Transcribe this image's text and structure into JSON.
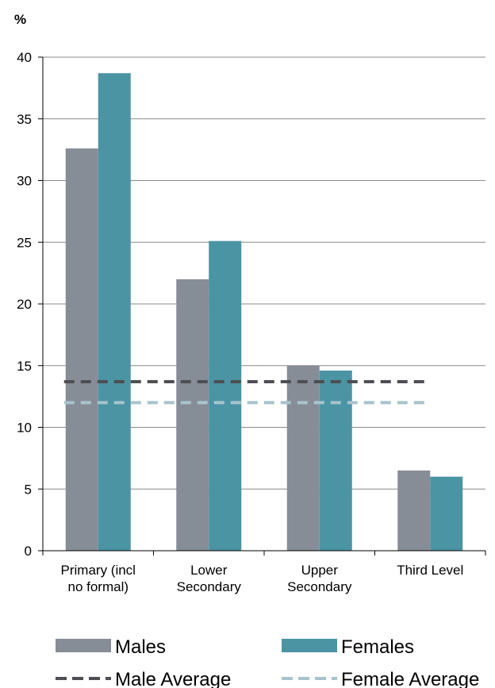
{
  "chart_data": {
    "type": "bar",
    "unit_label": "%",
    "categories": [
      [
        "Primary (incl",
        "no formal)"
      ],
      [
        "Lower",
        "Secondary"
      ],
      [
        "Upper",
        "Secondary"
      ],
      [
        "Third Level"
      ]
    ],
    "series": [
      {
        "name": "Males",
        "values": [
          32.6,
          22.0,
          15.0,
          6.5
        ],
        "color": "#878d97"
      },
      {
        "name": "Females",
        "values": [
          38.7,
          25.1,
          14.6,
          6.0
        ],
        "color": "#4a94a4"
      }
    ],
    "reference_lines": [
      {
        "name": "Male Average",
        "value": 13.7,
        "color": "#4d4f52",
        "style": "dashed"
      },
      {
        "name": "Female Average",
        "value": 12.0,
        "color": "#a7c4cc",
        "style": "dashed"
      }
    ],
    "ylim": [
      0,
      40
    ],
    "yticks": [
      0,
      5,
      10,
      15,
      20,
      25,
      30,
      35,
      40
    ],
    "grid": true,
    "legend_position": "bottom"
  }
}
